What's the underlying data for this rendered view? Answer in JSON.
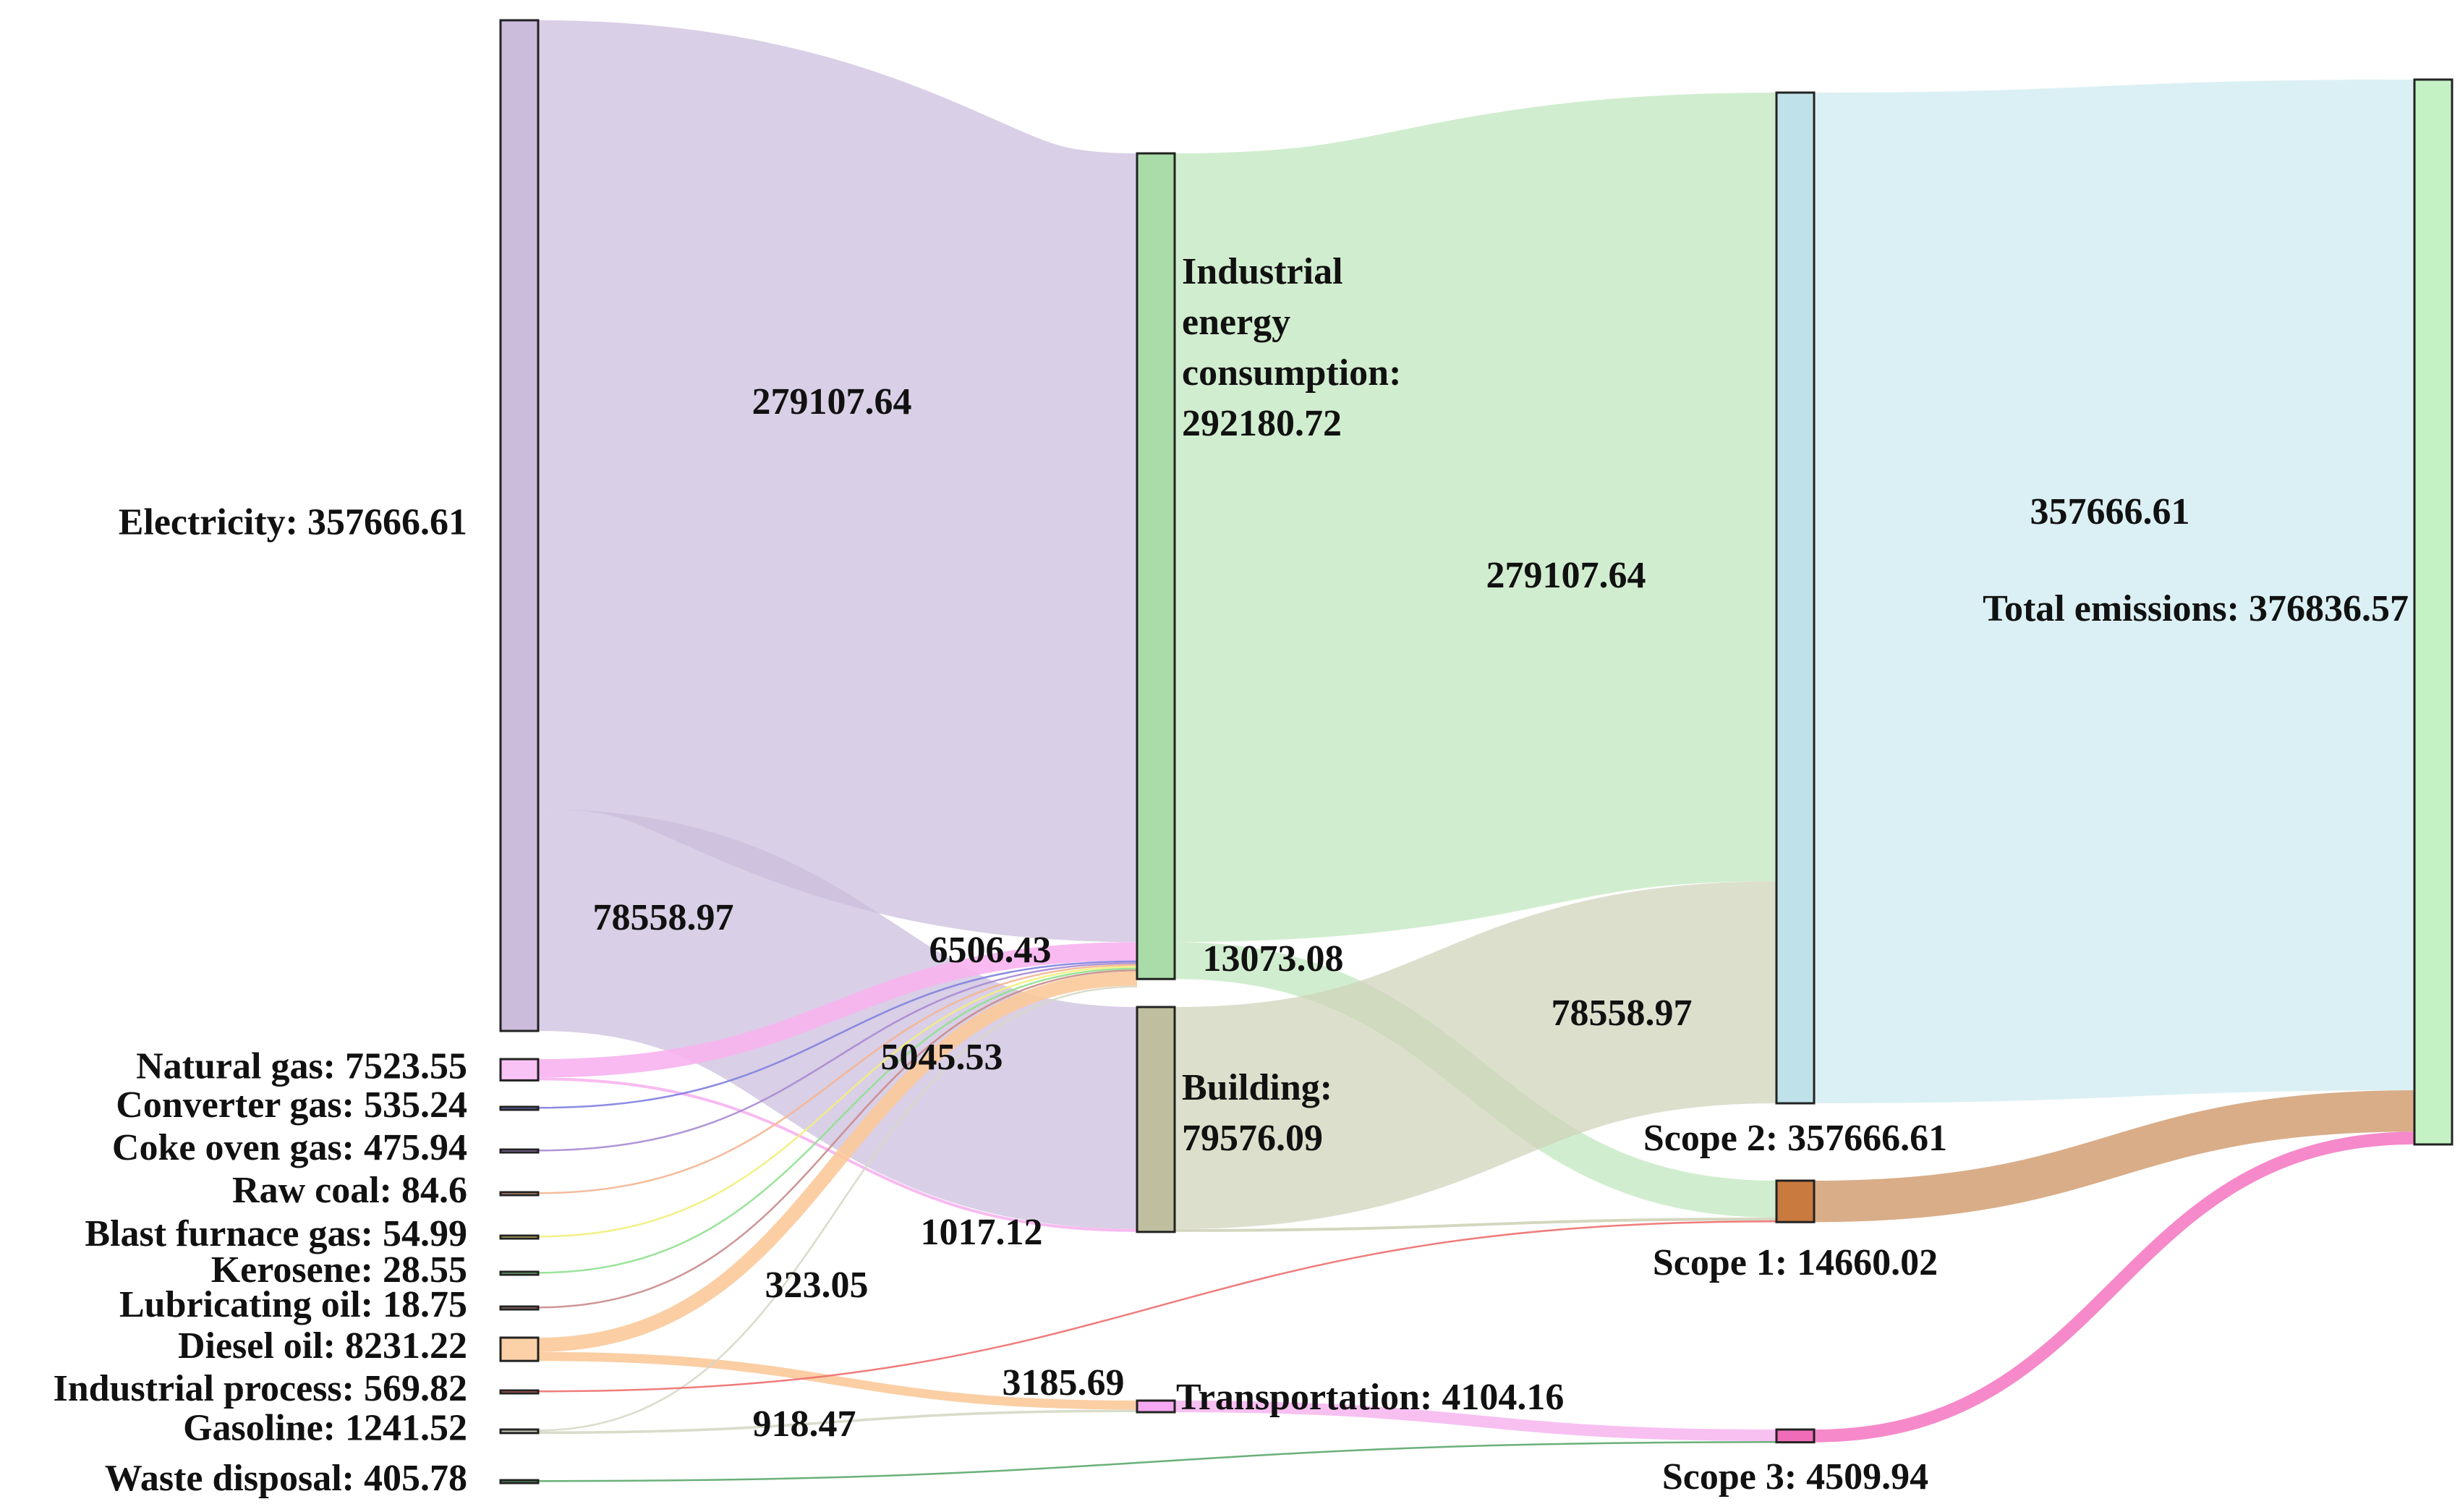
{
  "chart_data": {
    "type": "sankey",
    "title": "",
    "nodes": [
      {
        "id": "electricity",
        "label": "Electricity: 357666.61",
        "value": 357666.61,
        "color": "#cbbcdc"
      },
      {
        "id": "natural_gas",
        "label": "Natural gas: 7523.55",
        "value": 7523.55,
        "color": "#f9c3f6"
      },
      {
        "id": "converter_gas",
        "label": "Converter gas: 535.24",
        "value": 535.24,
        "color": "#7f7fe0"
      },
      {
        "id": "coke_oven_gas",
        "label": "Coke oven gas: 475.94",
        "value": 475.94,
        "color": "#a88ad2"
      },
      {
        "id": "raw_coal",
        "label": "Raw coal: 84.6",
        "value": 84.6,
        "color": "#f5b48f"
      },
      {
        "id": "blast_furnace_gas",
        "label": "Blast furnace gas: 54.99",
        "value": 54.99,
        "color": "#f2ee7a"
      },
      {
        "id": "kerosene",
        "label": "Kerosene: 28.55",
        "value": 28.55,
        "color": "#8fe08f"
      },
      {
        "id": "lubricating_oil",
        "label": "Lubricating oil: 18.75",
        "value": 18.75,
        "color": "#c98a8a"
      },
      {
        "id": "diesel_oil",
        "label": "Diesel oil: 8231.22",
        "value": 8231.22,
        "color": "#fdd1a8"
      },
      {
        "id": "industrial_process",
        "label": "Industrial process: 569.82",
        "value": 569.82,
        "color": "#ee6e6e"
      },
      {
        "id": "gasoline",
        "label": "Gasoline: 1241.52",
        "value": 1241.52,
        "color": "#cfd1bf"
      },
      {
        "id": "waste_disposal",
        "label": "Waste disposal: 405.78",
        "value": 405.78,
        "color": "#5aa76b"
      },
      {
        "id": "industrial_energy",
        "label": "Industrial energy consumption: 292180.72",
        "label_lines": [
          "Industrial",
          "energy",
          "consumption:",
          "292180.72"
        ],
        "value": 292180.72,
        "color": "#a9dca8"
      },
      {
        "id": "building",
        "label": "Building: 79576.09",
        "label_lines": [
          "Building:",
          "79576.09"
        ],
        "value": 79576.09,
        "color": "#bfbf9f"
      },
      {
        "id": "transportation",
        "label": "Transportation: 4104.16",
        "value": 4104.16,
        "color": "#f7a8f2"
      },
      {
        "id": "scope2",
        "label": "Scope 2: 357666.61",
        "value": 357666.61,
        "color": "#bfe2ea"
      },
      {
        "id": "scope1",
        "label": "Scope 1: 14660.02",
        "value": 14660.02,
        "color": "#c97a3e"
      },
      {
        "id": "scope3",
        "label": "Scope 3: 4509.94",
        "value": 4509.94,
        "color": "#f06cb8"
      },
      {
        "id": "total",
        "label": "Total emissions: 376836.57",
        "value": 376836.57,
        "color": "#c5f2c5"
      }
    ],
    "links": [
      {
        "source": "electricity",
        "target": "industrial_energy",
        "value": 279107.64,
        "color": "#cbbcdc"
      },
      {
        "source": "electricity",
        "target": "building",
        "value": 78558.97,
        "color": "#cbbcdc"
      },
      {
        "source": "natural_gas",
        "target": "industrial_energy",
        "value": 6506.43,
        "color": "#f7b3ee"
      },
      {
        "source": "natural_gas",
        "target": "building",
        "value": 1017.12,
        "color": "#f7b3ee"
      },
      {
        "source": "converter_gas",
        "target": "industrial_energy",
        "value": 535.24,
        "color": "#7f7fe0"
      },
      {
        "source": "coke_oven_gas",
        "target": "industrial_energy",
        "value": 475.94,
        "color": "#a88ad2"
      },
      {
        "source": "raw_coal",
        "target": "industrial_energy",
        "value": 84.6,
        "color": "#f5b48f"
      },
      {
        "source": "blast_furnace_gas",
        "target": "industrial_energy",
        "value": 54.99,
        "color": "#f2ee7a"
      },
      {
        "source": "kerosene",
        "target": "industrial_energy",
        "value": 28.55,
        "color": "#8fe08f"
      },
      {
        "source": "lubricating_oil",
        "target": "industrial_energy",
        "value": 18.75,
        "color": "#c98a8a"
      },
      {
        "source": "diesel_oil",
        "target": "industrial_energy",
        "value": 5045.53,
        "color": "#fbc99a"
      },
      {
        "source": "diesel_oil",
        "target": "transportation",
        "value": 3185.69,
        "color": "#fbc99a"
      },
      {
        "source": "gasoline",
        "target": "industrial_energy",
        "value": 323.05,
        "color": "#d6d8c4"
      },
      {
        "source": "gasoline",
        "target": "transportation",
        "value": 918.47,
        "color": "#d6d8c4"
      },
      {
        "source": "industrial_energy",
        "target": "scope2",
        "value": 279107.64,
        "color": "#bfe6bd"
      },
      {
        "source": "industrial_energy",
        "target": "scope1",
        "value": 13073.08,
        "color": "#bfe6bd"
      },
      {
        "source": "building",
        "target": "scope2",
        "value": 78558.97,
        "color": "#cfd2b8"
      },
      {
        "source": "building",
        "target": "scope1",
        "value": 1017.12,
        "color": "#cfd2b8"
      },
      {
        "source": "industrial_process",
        "target": "scope1",
        "value": 569.82,
        "color": "#ee6e6e"
      },
      {
        "source": "transportation",
        "target": "scope3",
        "value": 4104.16,
        "color": "#f7b8ef"
      },
      {
        "source": "waste_disposal",
        "target": "scope3",
        "value": 405.78,
        "color": "#5aa76b"
      },
      {
        "source": "scope2",
        "target": "total",
        "value": 357666.61,
        "color": "#cdeaf0"
      },
      {
        "source": "scope1",
        "target": "total",
        "value": 14660.02,
        "color": "#c98e5a"
      },
      {
        "source": "scope3",
        "target": "total",
        "value": 4509.94,
        "color": "#f57cc4"
      }
    ],
    "flow_labels": [
      {
        "text": "279107.64",
        "link": 0
      },
      {
        "text": "78558.97",
        "link": 1
      },
      {
        "text": "6506.43",
        "link": 2
      },
      {
        "text": "1017.12",
        "link": 3
      },
      {
        "text": "5045.53",
        "link": 10
      },
      {
        "text": "3185.69",
        "link": 11
      },
      {
        "text": "323.05",
        "link": 12
      },
      {
        "text": "918.47",
        "link": 13
      },
      {
        "text": "279107.64",
        "link": 14
      },
      {
        "text": "13073.08",
        "link": 15
      },
      {
        "text": "78558.97",
        "link": 16
      },
      {
        "text": "357666.61",
        "link": 21
      }
    ]
  }
}
